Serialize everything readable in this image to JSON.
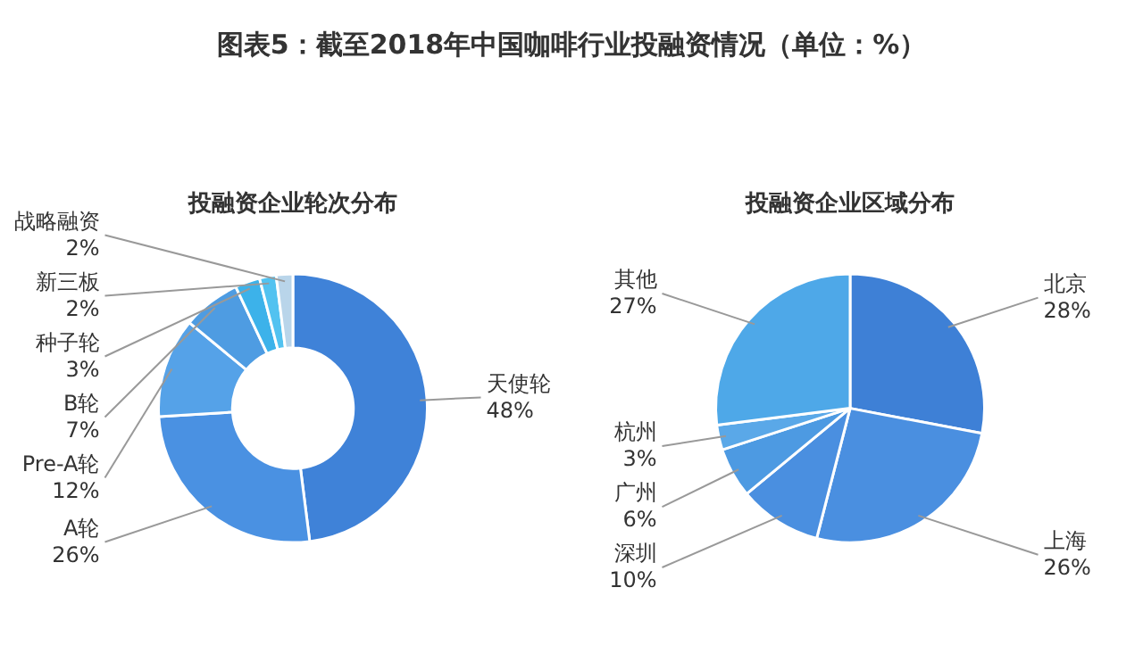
{
  "chart_data": [
    {
      "type": "donut",
      "title": "投融资企业轮次分布",
      "annotations": [
        "图表5：截至2018年中国咖啡行业投融资情况（单位：%）"
      ],
      "categories": [
        "天使轮",
        "A轮",
        "Pre-A轮",
        "B轮",
        "种子轮",
        "新三板",
        "战略融资"
      ],
      "values": [
        48,
        26,
        12,
        7,
        3,
        2,
        2
      ],
      "value_labels": [
        "48%",
        "26%",
        "12%",
        "7%",
        "3%",
        "2%",
        "2%"
      ],
      "colors": [
        "#3f82d8",
        "#4a91e2",
        "#55a2e8",
        "#4e9ce2",
        "#3cb2ea",
        "#52c2f0",
        "#b9d5ea"
      ]
    },
    {
      "type": "pie",
      "title": "投融资企业区域分布",
      "categories": [
        "北京",
        "上海",
        "深圳",
        "广州",
        "杭州",
        "其他"
      ],
      "values": [
        28,
        26,
        10,
        6,
        3,
        27
      ],
      "value_labels": [
        "28%",
        "26%",
        "10%",
        "6%",
        "3%",
        "27%"
      ],
      "colors": [
        "#3e80d6",
        "#4a8fe0",
        "#4a8fe0",
        "#4d9ae2",
        "#5aa8e8",
        "#4ea8e8"
      ]
    }
  ]
}
